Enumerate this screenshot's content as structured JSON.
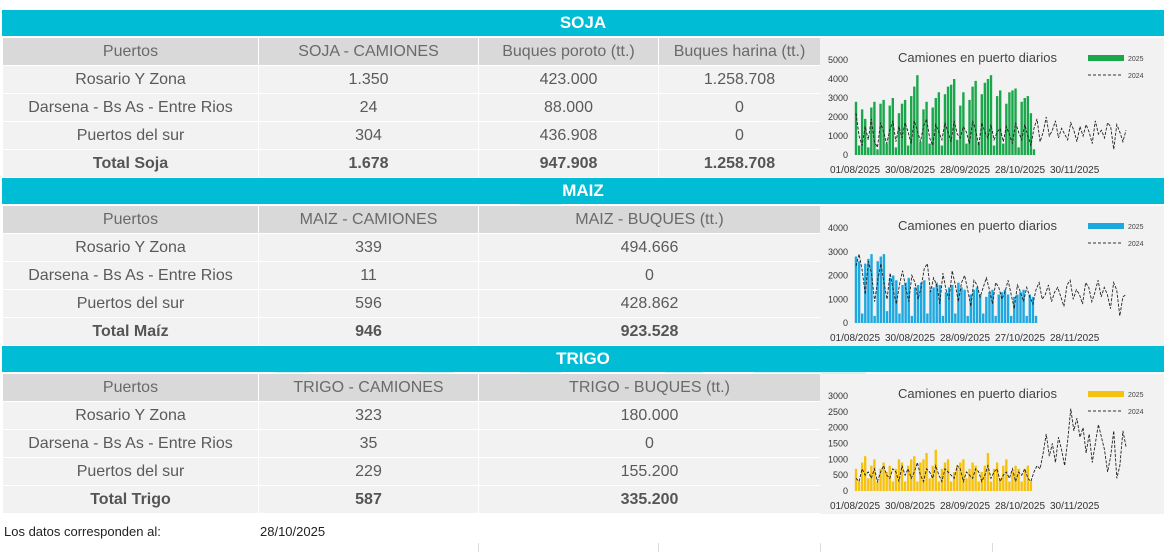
{
  "sections": [
    {
      "title": "SOJA",
      "headers": [
        "Puertos",
        "SOJA - CAMIONES",
        "Buques poroto (tt.)",
        "Buques harina (tt.)"
      ],
      "rows": [
        [
          "Rosario Y Zona",
          "1.350",
          "423.000",
          "1.258.708"
        ],
        [
          "Darsena - Bs As - Entre Rios",
          "24",
          "88.000",
          "0"
        ],
        [
          "Puertos del sur",
          "304",
          "436.908",
          "0"
        ]
      ],
      "total": [
        "Total Soja",
        "1.678",
        "947.908",
        "1.258.708"
      ],
      "chart": {
        "title": "Camiones en puerto diarios",
        "legend_2025": "2025",
        "legend_2024": "2024",
        "color_2025": "#1aa64a",
        "yticks": [
          "5000",
          "4000",
          "3000",
          "2000",
          "1000",
          "0"
        ],
        "ymax": 5000,
        "xticks": [
          "01/08/2025",
          "30/08/2025",
          "28/09/2025",
          "28/10/2025",
          "30/11/2025"
        ],
        "series_2025": [
          2800,
          500,
          2400,
          1900,
          400,
          2500,
          2800,
          300,
          2700,
          2900,
          600,
          2600,
          3000,
          400,
          2200,
          2700,
          2900,
          500,
          3100,
          3600,
          4200,
          700,
          2400,
          2800,
          600,
          2500,
          3000,
          3300,
          500,
          3200,
          3600,
          3700,
          4000,
          800,
          2600,
          3300,
          600,
          2900,
          3600,
          3900,
          600,
          3200,
          3800,
          4000,
          4200,
          500,
          3100,
          3400,
          600,
          2700,
          3300,
          3400,
          3500,
          400,
          2800,
          3000,
          3100,
          2200,
          300
        ],
        "series_2024": [
          2200,
          1000,
          500,
          1500,
          800,
          1900,
          700,
          400,
          1700,
          1200,
          600,
          1300,
          1800,
          700,
          1500,
          900,
          1700,
          1200,
          600,
          1800,
          1300,
          700,
          1500,
          1900,
          900,
          500,
          1600,
          1200,
          800,
          1700,
          1200,
          700,
          1800,
          1100,
          900,
          1500,
          1200,
          600,
          1800,
          1300,
          500,
          1700,
          1200,
          900,
          1600,
          800,
          1200,
          1400,
          700,
          1500,
          1100,
          600,
          1700,
          1200,
          800,
          1600,
          1000,
          500,
          1400,
          1900,
          700,
          1200,
          2000,
          1000,
          1300,
          1800,
          900,
          1400,
          1100,
          800,
          1700,
          1300,
          700,
          1500,
          1000,
          1600,
          1200,
          600,
          1800,
          1100,
          1300,
          900,
          1700,
          1500,
          300,
          1600,
          1200,
          700,
          1300
        ]
      }
    },
    {
      "title": "MAIZ",
      "headers": [
        "Puertos",
        "MAIZ - CAMIONES",
        "MAIZ - BUQUES (tt.)"
      ],
      "rows": [
        [
          "Rosario Y Zona",
          "339",
          "494.666"
        ],
        [
          "Darsena - Bs As - Entre Rios",
          "11",
          "0"
        ],
        [
          "Puertos del sur",
          "596",
          "428.862"
        ]
      ],
      "total": [
        "Total Maíz",
        "946",
        "923.528"
      ],
      "chart": {
        "title": "Camiones en puerto diarios",
        "legend_2025": "2025",
        "legend_2024": "2024",
        "color_2025": "#1ea8e0",
        "yticks": [
          "4000",
          "3000",
          "2000",
          "1000",
          "0"
        ],
        "ymax": 4000,
        "xticks": [
          "01/08/2025",
          "30/08/2025",
          "28/09/2025",
          "27/10/2025",
          "28/11/2025"
        ],
        "series_2025": [
          2800,
          2600,
          400,
          2500,
          2700,
          2900,
          300,
          2600,
          2800,
          2900,
          500,
          1900,
          2000,
          1800,
          400,
          1600,
          1700,
          1900,
          300,
          1500,
          1600,
          1700,
          1800,
          400,
          1400,
          1500,
          1700,
          1600,
          300,
          1300,
          1500,
          1600,
          400,
          1700,
          1500,
          1400,
          300,
          1200,
          1400,
          1500,
          1200,
          400,
          1100,
          1300,
          1400,
          300,
          1200,
          1300,
          1400,
          1200,
          300,
          1100,
          1200,
          1300,
          1400,
          300,
          1200,
          1100,
          300
        ],
        "series_2024": [
          2400,
          2900,
          2200,
          1200,
          2600,
          2100,
          900,
          1800,
          2500,
          1700,
          1000,
          2100,
          1400,
          800,
          1600,
          2200,
          1500,
          900,
          2000,
          1700,
          1000,
          1500,
          2300,
          2500,
          1300,
          1900,
          1600,
          800,
          2100,
          1400,
          1000,
          2200,
          1600,
          900,
          1700,
          2000,
          1400,
          700,
          1800,
          1600,
          1100,
          1500,
          1900,
          1400,
          800,
          1700,
          1500,
          1000,
          1300,
          1800,
          1200,
          600,
          1600,
          1300,
          900,
          1500,
          1100,
          800,
          1400,
          1700,
          1000,
          1200,
          1600,
          900,
          1300,
          1500,
          1100,
          700,
          1600,
          1800,
          1000,
          1400,
          1200,
          800,
          1700,
          1500,
          900,
          1300,
          1800,
          1100,
          1500,
          1200,
          600,
          1700,
          1400,
          300,
          1100,
          1200
        ]
      }
    },
    {
      "title": "TRIGO",
      "headers": [
        "Puertos",
        "TRIGO - CAMIONES",
        "TRIGO - BUQUES (tt.)"
      ],
      "rows": [
        [
          "Rosario Y Zona",
          "323",
          "180.000"
        ],
        [
          "Darsena - Bs As - Entre Rios",
          "35",
          "0"
        ],
        [
          "Puertos del sur",
          "229",
          "155.200"
        ]
      ],
      "total": [
        "Total Trigo",
        "587",
        "335.200"
      ],
      "chart": {
        "title": "Camiones en puerto diarios",
        "legend_2025": "2025",
        "legend_2024": "2024",
        "color_2025": "#f6c20f",
        "yticks": [
          "3000",
          "2500",
          "2000",
          "1500",
          "1000",
          "500",
          "0"
        ],
        "ymax": 3000,
        "xticks": [
          "01/08/2025",
          "30/08/2025",
          "28/09/2025",
          "28/10/2025",
          "30/11/2025"
        ],
        "series_2025": [
          700,
          300,
          900,
          1100,
          400,
          800,
          1000,
          300,
          700,
          900,
          600,
          800,
          300,
          700,
          1000,
          900,
          300,
          800,
          1000,
          1100,
          300,
          900,
          1000,
          1200,
          400,
          800,
          1300,
          300,
          700,
          900,
          1000,
          300,
          600,
          800,
          900,
          1000,
          400,
          700,
          900,
          800,
          300,
          600,
          800,
          1200,
          300,
          700,
          900,
          400,
          800,
          1000,
          300,
          600,
          800,
          700,
          300,
          700,
          800,
          300
        ],
        "series_2024": [
          400,
          300,
          700,
          500,
          600,
          400,
          700,
          300,
          600,
          800,
          500,
          400,
          700,
          600,
          300,
          800,
          500,
          700,
          400,
          600,
          900,
          500,
          300,
          700,
          600,
          400,
          800,
          500,
          300,
          700,
          600,
          500,
          400,
          800,
          700,
          300,
          600,
          500,
          400,
          700,
          600,
          300,
          500,
          800,
          400,
          600,
          700,
          300,
          500,
          600,
          400,
          700,
          300,
          600,
          500,
          700,
          400,
          300,
          600,
          800,
          700,
          1200,
          1800,
          1100,
          1500,
          900,
          1700,
          1300,
          800,
          1600,
          2600,
          1900,
          2300,
          1700,
          2000,
          1200,
          1800,
          900,
          1500,
          2100,
          1700,
          1300,
          600,
          1100,
          1900,
          400,
          800,
          1900,
          1400
        ]
      }
    }
  ],
  "footer": {
    "label": "Los datos corresponden al:",
    "date": "28/10/2025"
  }
}
